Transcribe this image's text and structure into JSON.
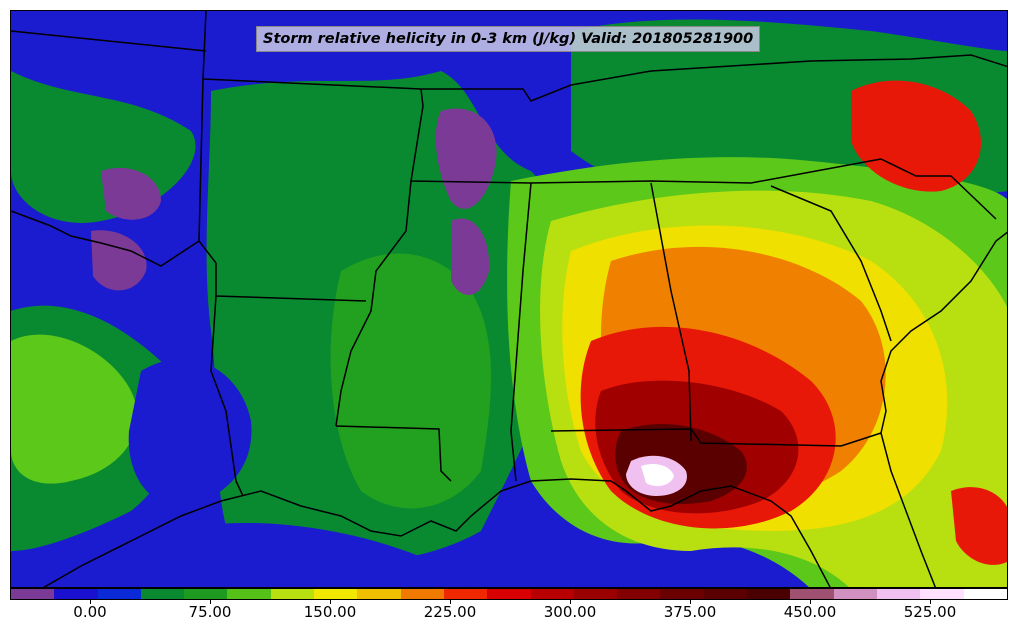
{
  "title": "Storm relative helicity in 0-3 km (J/kg) Valid: 201805281900",
  "colorbar": {
    "colors": [
      "#7b3a96",
      "#1a10d0",
      "#0a2ad8",
      "#0a8a30",
      "#1f9a20",
      "#54c018",
      "#b8e010",
      "#f0e800",
      "#f0c000",
      "#f07a00",
      "#f02800",
      "#d80000",
      "#b80000",
      "#9a0000",
      "#820000",
      "#6a0000",
      "#5a0000",
      "#4a0000",
      "#a05070",
      "#d090c0",
      "#f0c0f0",
      "#ffe0ff",
      "#ffffff"
    ],
    "tick_labels": [
      "0.00",
      "75.00",
      "150.00",
      "225.00",
      "300.00",
      "375.00",
      "450.00",
      "525.00"
    ]
  },
  "palette": {
    "purple": "#7b3a96",
    "blue": "#1a10d0",
    "dkgreen": "#0a8a30",
    "green": "#22a020",
    "ltgreen": "#5cc81a",
    "yellowgreen": "#b8e010",
    "yellow": "#f0e000",
    "orange": "#f08000",
    "red": "#e81808",
    "darkred": "#a00000",
    "maroon": "#5a0000",
    "pink": "#f0c0f0",
    "white": "#ffffff",
    "border": "#000000"
  }
}
